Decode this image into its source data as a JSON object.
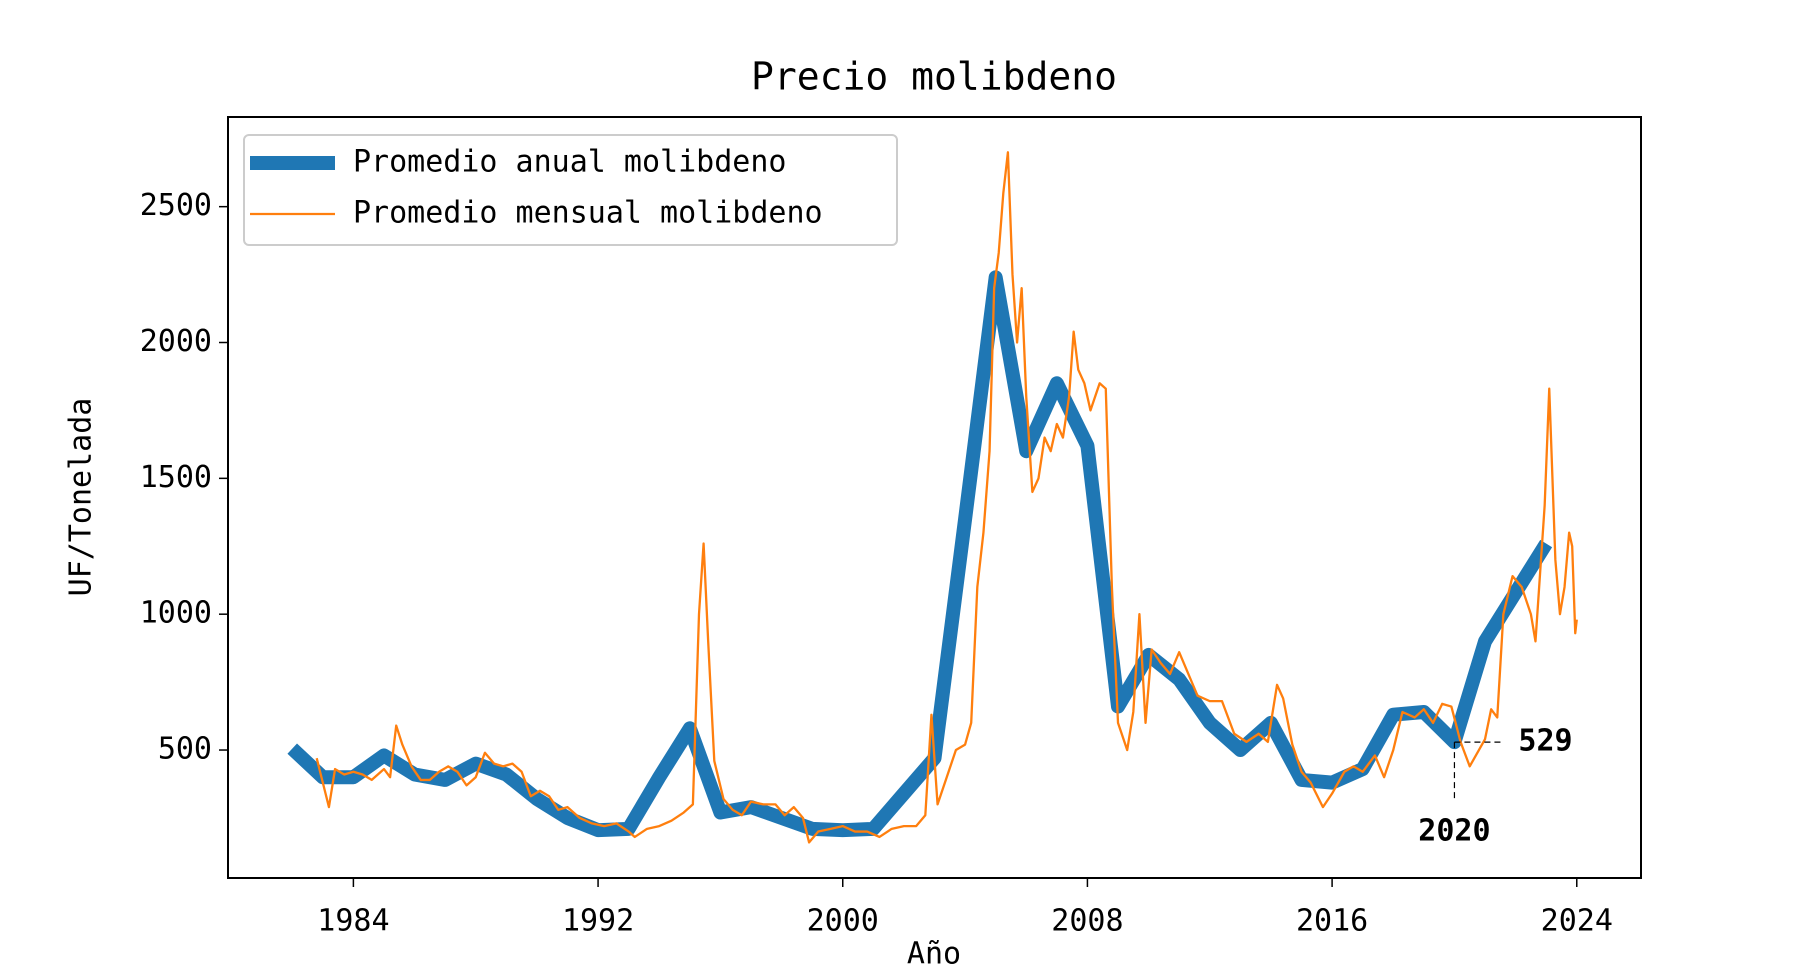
{
  "chart_data": {
    "type": "line",
    "title": "Precio molibdeno",
    "xlabel": "Año",
    "ylabel": "UF/Tonelada",
    "xlim": [
      1979.9,
      2026.1
    ],
    "ylim": [
      29,
      2830
    ],
    "xticks": [
      1984,
      1992,
      2000,
      2008,
      2016,
      2024
    ],
    "yticks": [
      500,
      1000,
      1500,
      2000,
      2500
    ],
    "legend": "upper left",
    "series": [
      {
        "name": "Promedio anual molibdeno",
        "color": "#1f77b4",
        "width": "thick",
        "x": [
          1982,
          1983,
          1984,
          1985,
          1986,
          1987,
          1988,
          1989,
          1990,
          1991,
          1992,
          1993,
          1994,
          1995,
          1996,
          1997,
          1998,
          1999,
          2000,
          2001,
          2002,
          2003,
          2004,
          2005,
          2006,
          2007,
          2008,
          2009,
          2010,
          2011,
          2012,
          2013,
          2014,
          2015,
          2016,
          2017,
          2018,
          2019,
          2020,
          2021,
          2022,
          2023
        ],
        "values": [
          505,
          400,
          400,
          480,
          410,
          390,
          450,
          410,
          320,
          250,
          205,
          210,
          400,
          580,
          270,
          290,
          250,
          210,
          205,
          210,
          340,
          470,
          1350,
          2240,
          1600,
          1850,
          1620,
          660,
          850,
          760,
          600,
          500,
          600,
          390,
          380,
          430,
          630,
          640,
          529,
          900,
          1080,
          1260
        ]
      },
      {
        "name": "Promedio mensual molibdeno",
        "color": "#ff7f0e",
        "width": "thin",
        "x": [
          1982.8,
          1983.0,
          1983.2,
          1983.4,
          1983.7,
          1984.0,
          1984.3,
          1984.6,
          1985.0,
          1985.2,
          1985.4,
          1985.6,
          1985.9,
          1986.2,
          1986.5,
          1986.8,
          1987.1,
          1987.4,
          1987.7,
          1988.0,
          1988.3,
          1988.6,
          1988.9,
          1989.2,
          1989.5,
          1989.8,
          1990.1,
          1990.4,
          1990.7,
          1991.0,
          1991.4,
          1991.8,
          1992.2,
          1992.6,
          1993.0,
          1993.2,
          1993.6,
          1994.0,
          1994.4,
          1994.8,
          1995.1,
          1995.3,
          1995.45,
          1995.6,
          1995.8,
          1996.1,
          1996.4,
          1996.7,
          1997.0,
          1997.4,
          1997.8,
          1998.1,
          1998.4,
          1998.7,
          1998.9,
          1999.2,
          1999.6,
          2000.0,
          2000.4,
          2000.8,
          2001.2,
          2001.6,
          2002.0,
          2002.4,
          2002.7,
          2002.9,
          2003.1,
          2003.4,
          2003.7,
          2004.0,
          2004.2,
          2004.4,
          2004.6,
          2004.8,
          2004.95,
          2005.1,
          2005.25,
          2005.4,
          2005.55,
          2005.7,
          2005.85,
          2006.0,
          2006.2,
          2006.4,
          2006.6,
          2006.8,
          2007.0,
          2007.2,
          2007.4,
          2007.55,
          2007.7,
          2007.9,
          2008.1,
          2008.4,
          2008.6,
          2008.8,
          2009.0,
          2009.3,
          2009.5,
          2009.7,
          2009.9,
          2010.1,
          2010.4,
          2010.7,
          2011.0,
          2011.3,
          2011.6,
          2012.0,
          2012.4,
          2012.8,
          2013.2,
          2013.6,
          2013.9,
          2014.2,
          2014.4,
          2014.7,
          2015.0,
          2015.3,
          2015.7,
          2016.0,
          2016.4,
          2016.7,
          2017.0,
          2017.4,
          2017.7,
          2018.0,
          2018.3,
          2018.7,
          2019.0,
          2019.3,
          2019.6,
          2019.9,
          2020.2,
          2020.5,
          2020.8,
          2021.0,
          2021.2,
          2021.4,
          2021.6,
          2021.9,
          2022.2,
          2022.5,
          2022.65,
          2022.8,
          2022.95,
          2023.1,
          2023.3,
          2023.45,
          2023.6,
          2023.75,
          2023.85,
          2023.95,
          2024.0
        ],
        "values": [
          470,
          380,
          290,
          430,
          410,
          420,
          410,
          390,
          430,
          400,
          590,
          520,
          440,
          390,
          390,
          420,
          440,
          420,
          370,
          400,
          490,
          450,
          440,
          450,
          420,
          330,
          350,
          330,
          280,
          290,
          250,
          230,
          220,
          230,
          200,
          180,
          210,
          220,
          240,
          270,
          300,
          1000,
          1260,
          900,
          460,
          320,
          280,
          260,
          310,
          300,
          300,
          260,
          290,
          250,
          160,
          200,
          210,
          220,
          200,
          200,
          180,
          210,
          220,
          220,
          260,
          630,
          300,
          400,
          500,
          520,
          600,
          1100,
          1300,
          1600,
          2200,
          2330,
          2550,
          2700,
          2250,
          2000,
          2200,
          1800,
          1450,
          1500,
          1650,
          1600,
          1700,
          1650,
          1800,
          2040,
          1900,
          1850,
          1750,
          1850,
          1830,
          1100,
          600,
          500,
          640,
          1000,
          600,
          870,
          820,
          780,
          860,
          780,
          700,
          680,
          680,
          560,
          530,
          560,
          530,
          740,
          690,
          520,
          420,
          380,
          290,
          340,
          420,
          440,
          420,
          480,
          400,
          500,
          640,
          620,
          650,
          600,
          670,
          660,
          530,
          440,
          500,
          540,
          650,
          620,
          1000,
          1140,
          1100,
          1000,
          900,
          1150,
          1400,
          1830,
          1200,
          1000,
          1100,
          1300,
          1250,
          930,
          980
        ]
      }
    ],
    "annotations": [
      {
        "x": 2020,
        "y": 529
      }
    ]
  }
}
